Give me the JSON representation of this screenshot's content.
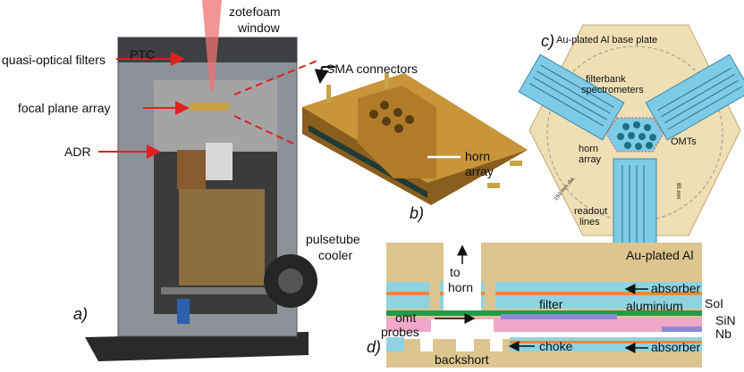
{
  "panel_a": {
    "label": "a)",
    "zotefoam_window": [
      "zotefoam",
      "window"
    ],
    "quasi_optical_filters": "quasi-optical filters",
    "ptc": "PTC",
    "focal_plane_array": "focal plane array",
    "adr": "ADR",
    "pulsetube_cooler": [
      "pulsetube",
      "cooler"
    ]
  },
  "panel_b": {
    "label": "b)",
    "sma_connectors": "SMA connectors",
    "horn_array": [
      "horn",
      "array"
    ]
  },
  "panel_c": {
    "label": "c)",
    "title": "Au-plated Al base plate",
    "filterbank_spectrometers": [
      "filterbank",
      "spectrometers"
    ],
    "omts": "OMTs",
    "horn_array": [
      "horn",
      "array"
    ],
    "readout_lines": [
      "readout",
      "lines"
    ],
    "diameter": "150 mm dia.",
    "length": "85 mm"
  },
  "panel_d": {
    "label": "d)",
    "au_plated_al": "Au-plated Al",
    "to_horn": [
      "to",
      "horn"
    ],
    "absorber_top": "absorber",
    "soi": "SoI",
    "filter": "filter",
    "aluminium": "aluminium",
    "omt_probes": [
      "omt",
      "probes"
    ],
    "sin": "SiN",
    "nb": "Nb",
    "absorber_bottom": "absorber",
    "backshort": "backshort",
    "choke": "choke"
  }
}
